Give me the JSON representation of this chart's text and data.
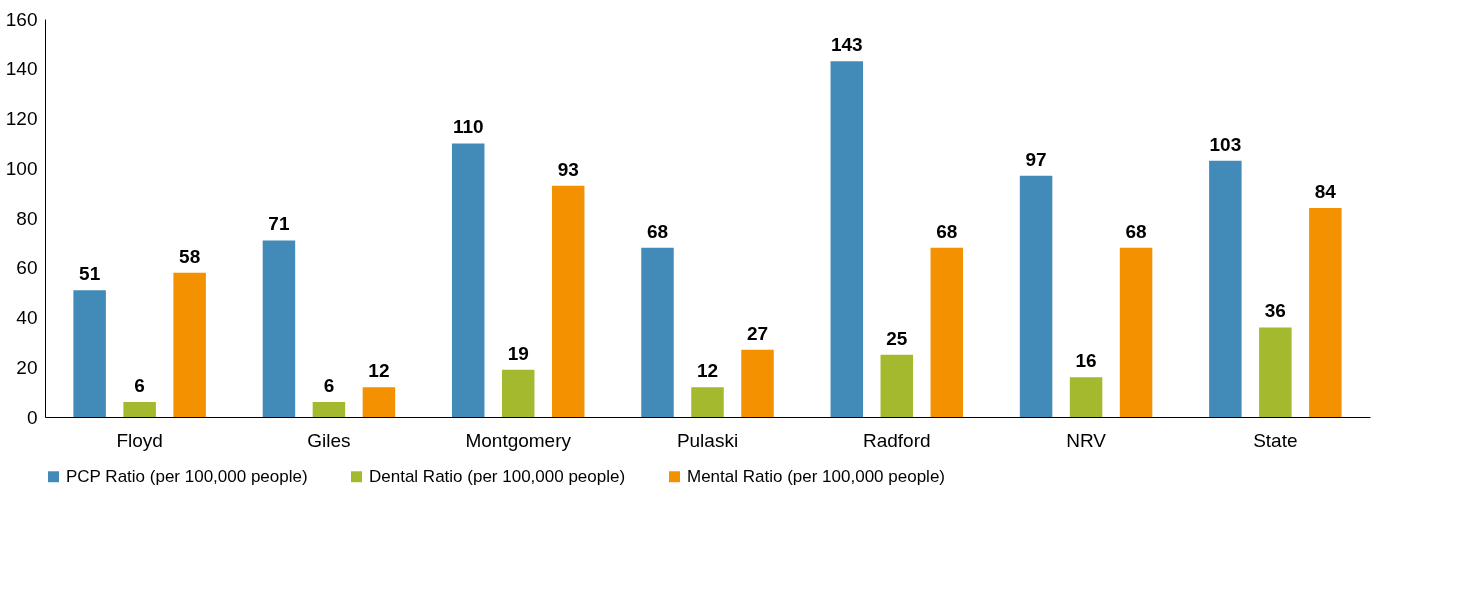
{
  "chart_data": {
    "type": "bar",
    "categories": [
      "Floyd",
      "Giles",
      "Montgomery",
      "Pulaski",
      "Radford",
      "NRV",
      "State"
    ],
    "series": [
      {
        "name": "PCP Ratio (per 100,000 people)",
        "color": "#428bb8",
        "values": [
          51,
          71,
          110,
          68,
          143,
          97,
          103
        ]
      },
      {
        "name": "Dental Ratio (per 100,000 people)",
        "color": "#a5b92e",
        "values": [
          6,
          6,
          19,
          12,
          25,
          16,
          36
        ]
      },
      {
        "name": "Mental Ratio (per 100,000 people)",
        "color": "#f39100",
        "values": [
          58,
          12,
          93,
          27,
          68,
          68,
          84
        ]
      }
    ],
    "ylim": [
      0,
      160
    ],
    "yticks": [
      0,
      20,
      40,
      60,
      80,
      100,
      120,
      140,
      160
    ],
    "grid": false,
    "legend": "bottom",
    "data_labels": true
  }
}
